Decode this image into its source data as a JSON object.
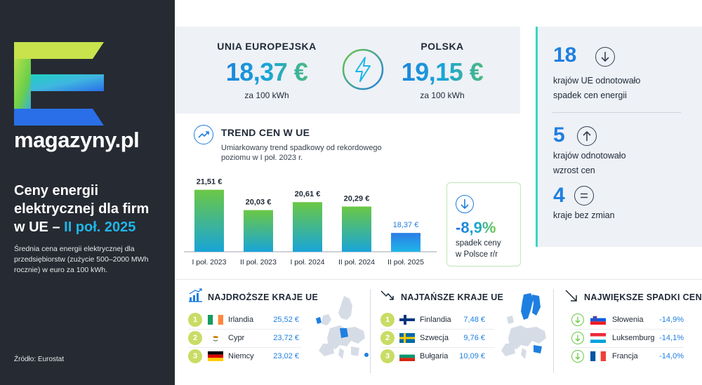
{
  "brand": {
    "name": "magazyny.pl"
  },
  "left": {
    "title_line1": "Ceny energii",
    "title_line2": "elektrycznej dla firm",
    "title_line3_prefix": "w UE – ",
    "title_line3_highlight": "II poł. 2025",
    "description": "Średnia cena energii elektrycznej dla przedsiębiorstw (zużycie 500–2000 MWh rocznie) w euro za 100 kWh.",
    "source": "Źródło: Eurostat"
  },
  "prices": {
    "eu_label": "UNIA EUROPEJSKA",
    "eu_value": "18,37 €",
    "eu_unit": "za 100 kWh",
    "pl_label": "POLSKA",
    "pl_value": "19,15 €",
    "pl_unit": "za 100 kWh"
  },
  "stats": {
    "decrease_count": "18",
    "decrease_text_1": "krajów UE odnotowało",
    "decrease_text_2": "spadek cen energii",
    "increase_count": "5",
    "increase_text_1": "krajów odnotowało",
    "increase_text_2": "wzrost cen",
    "same_count": "4",
    "same_text": "kraje bez zmian"
  },
  "trend": {
    "title": "TREND CEN W UE",
    "subtitle": "Umiarkowany trend spadkowy od rekordowego poziomu w I poł. 2023 r."
  },
  "chart_data": {
    "type": "bar",
    "title": "TREND CEN W UE",
    "categories": [
      "I poł. 2023",
      "II poł. 2023",
      "I poł. 2024",
      "II poł. 2024",
      "II poł. 2025"
    ],
    "values": [
      21.51,
      20.03,
      20.61,
      20.29,
      18.37
    ],
    "value_labels": [
      "21,51 €",
      "20,03 €",
      "20,61 €",
      "20,29 €",
      "18,37 €"
    ],
    "ylim": [
      17,
      22
    ],
    "colors": {
      "gradient_top": "#6bc845",
      "gradient_bottom": "#19a4d8",
      "last_top": "#2c7de6",
      "last_bottom": "#1fb6e8",
      "highlight_label": "#1f7fe0"
    }
  },
  "poland_change": {
    "value": "-8,9%",
    "text_1": "spadek ceny",
    "text_2": "w Polsce r/r"
  },
  "expensive": {
    "title": "NAJDROŻSZE KRAJE UE",
    "rows": [
      {
        "rank": "1",
        "country": "Irlandia",
        "value": "25,52 €",
        "flag": "ireland"
      },
      {
        "rank": "2",
        "country": "Cypr",
        "value": "23,72 €",
        "flag": "cyprus"
      },
      {
        "rank": "3",
        "country": "Niemcy",
        "value": "23,02 €",
        "flag": "germany"
      }
    ]
  },
  "cheap": {
    "title": "NAJTAŃSZE KRAJE UE",
    "rows": [
      {
        "rank": "1",
        "country": "Finlandia",
        "value": "7,48 €",
        "flag": "finland"
      },
      {
        "rank": "2",
        "country": "Szwecja",
        "value": "9,76 €",
        "flag": "sweden"
      },
      {
        "rank": "3",
        "country": "Bułgaria",
        "value": "10,09 €",
        "flag": "bulgaria"
      }
    ]
  },
  "drops": {
    "title": "NAJWIĘKSZE SPADKI CEN",
    "rows": [
      {
        "country": "Słowenia",
        "value": "-14,9%",
        "flag": "slovenia"
      },
      {
        "country": "Luksemburg",
        "value": "-14,1%",
        "flag": "luxembourg"
      },
      {
        "country": "Francja",
        "value": "-14,0%",
        "flag": "france"
      }
    ]
  },
  "colors": {
    "accent_blue": "#1f7fe0",
    "accent_green": "#6bc845",
    "dark_panel": "#262a32",
    "rank_badge": "#c9dc64"
  }
}
